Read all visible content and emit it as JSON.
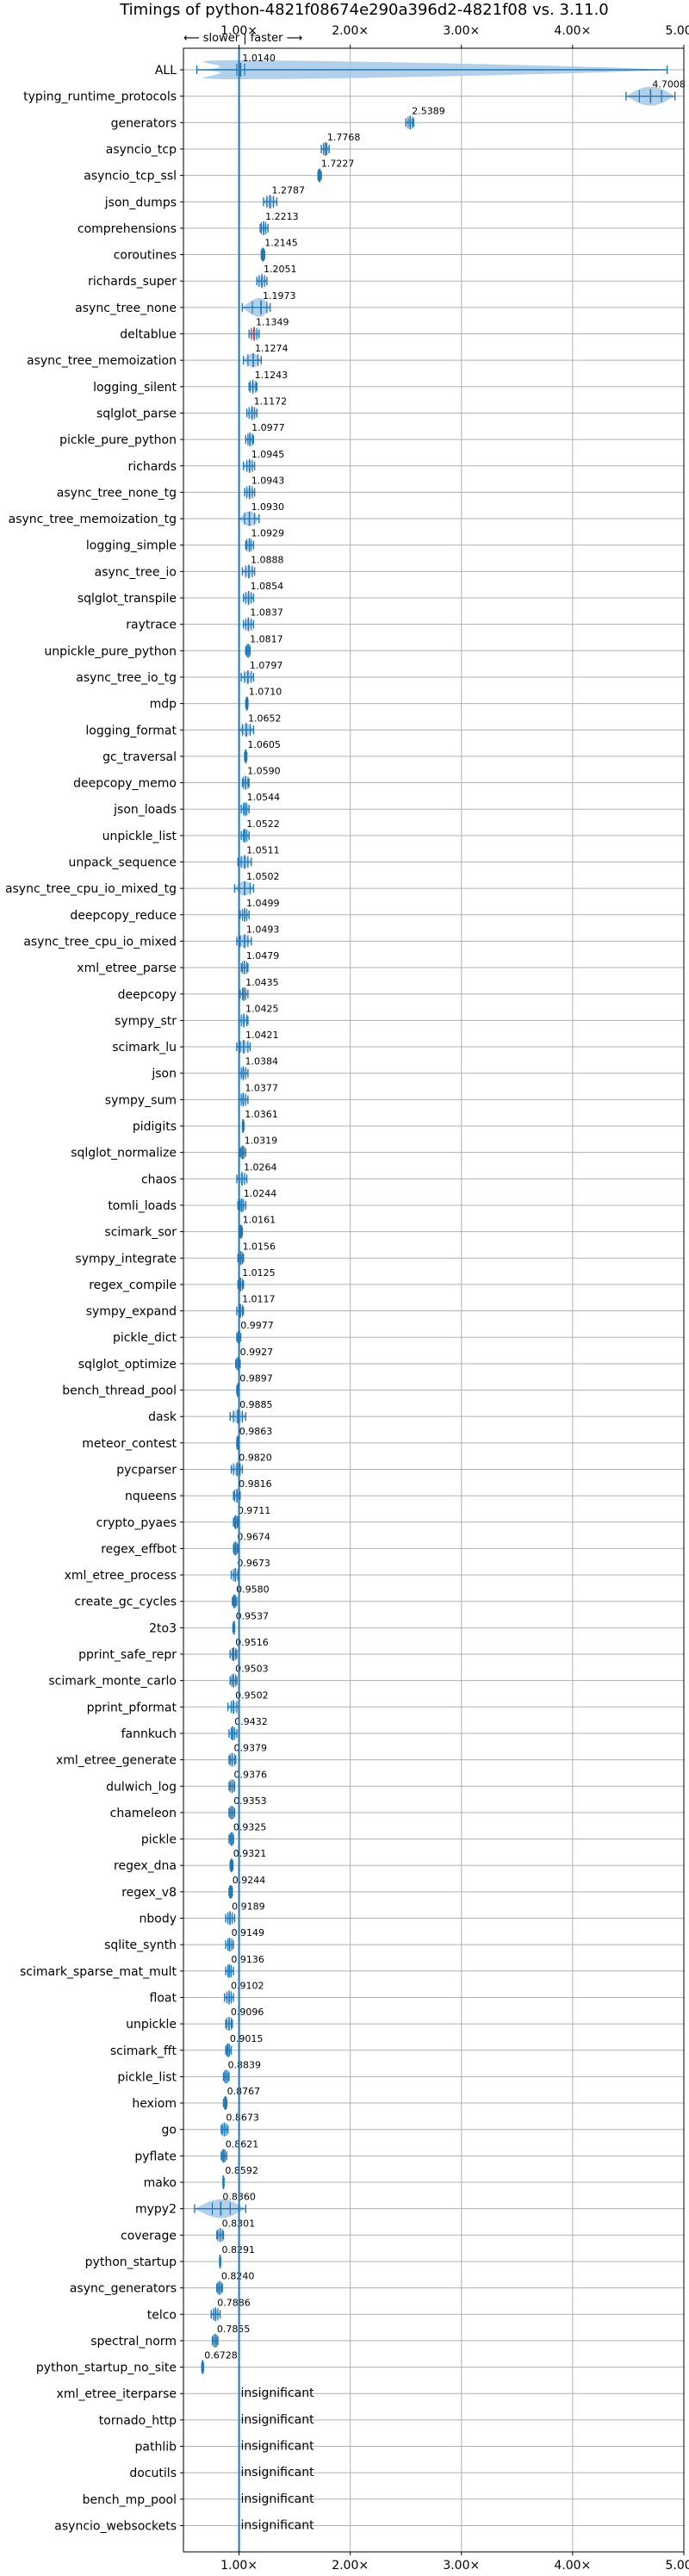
{
  "chart_data": {
    "type": "violin",
    "title": "Timings of python-4821f08674e290a396d2-4821f08 vs. 3.11.0",
    "direction_label": "⟵ slower | faster ⟶",
    "xlim": [
      0.5,
      5.0
    ],
    "x_ticks": [
      {
        "value": 1,
        "label": "1.00×"
      },
      {
        "value": 2,
        "label": "2.00×"
      },
      {
        "value": 3,
        "label": "3.00×"
      },
      {
        "value": 4,
        "label": "4.00×"
      },
      {
        "value": 5,
        "label": "5.00×"
      }
    ],
    "reference_line": 1.0,
    "grid": true,
    "colors": {
      "violin": "#a6c8e8",
      "line": "#1f77b4",
      "outlier": "#d62728"
    },
    "benchmarks": [
      {
        "name": "ALL",
        "value": 1.014,
        "label": "1.0140",
        "min": 0.62,
        "max": 4.85,
        "q1": 0.98,
        "q3": 1.05
      },
      {
        "name": "typing_runtime_protocols",
        "value": 4.7008,
        "label": "4.7008",
        "min": 4.48,
        "max": 4.92,
        "q1": 4.6,
        "q3": 4.8
      },
      {
        "name": "generators",
        "value": 2.5389,
        "label": "2.5389",
        "min": 2.5,
        "max": 2.57,
        "q1": 2.52,
        "q3": 2.56
      },
      {
        "name": "asyncio_tcp",
        "value": 1.7768,
        "label": "1.7768",
        "min": 1.74,
        "max": 1.81,
        "q1": 1.76,
        "q3": 1.79
      },
      {
        "name": "asyncio_tcp_ssl",
        "value": 1.7227,
        "label": "1.7227",
        "min": 1.71,
        "max": 1.74,
        "q1": 1.715,
        "q3": 1.73
      },
      {
        "name": "json_dumps",
        "value": 1.2787,
        "label": "1.2787",
        "min": 1.22,
        "max": 1.34,
        "q1": 1.25,
        "q3": 1.31
      },
      {
        "name": "comprehensions",
        "value": 1.2213,
        "label": "1.2213",
        "min": 1.19,
        "max": 1.26,
        "q1": 1.2,
        "q3": 1.24
      },
      {
        "name": "coroutines",
        "value": 1.2145,
        "label": "1.2145",
        "min": 1.2,
        "max": 1.23,
        "q1": 1.205,
        "q3": 1.225
      },
      {
        "name": "richards_super",
        "value": 1.2051,
        "label": "1.2051",
        "min": 1.16,
        "max": 1.25,
        "q1": 1.18,
        "q3": 1.23
      },
      {
        "name": "async_tree_none",
        "value": 1.1973,
        "label": "1.1973",
        "min": 1.03,
        "max": 1.28,
        "q1": 1.12,
        "q3": 1.25
      },
      {
        "name": "deltablue",
        "value": 1.1349,
        "label": "1.1349",
        "min": 1.09,
        "max": 1.18,
        "q1": 1.11,
        "q3": 1.16,
        "outlier": true
      },
      {
        "name": "async_tree_memoization",
        "value": 1.1274,
        "label": "1.1274",
        "min": 1.04,
        "max": 1.2,
        "q1": 1.08,
        "q3": 1.17
      },
      {
        "name": "logging_silent",
        "value": 1.1243,
        "label": "1.1243",
        "min": 1.09,
        "max": 1.16,
        "q1": 1.1,
        "q3": 1.15
      },
      {
        "name": "sqlglot_parse",
        "value": 1.1172,
        "label": "1.1172",
        "min": 1.07,
        "max": 1.16,
        "q1": 1.09,
        "q3": 1.14
      },
      {
        "name": "pickle_pure_python",
        "value": 1.0977,
        "label": "1.0977",
        "min": 1.06,
        "max": 1.13,
        "q1": 1.08,
        "q3": 1.12
      },
      {
        "name": "richards",
        "value": 1.0945,
        "label": "1.0945",
        "min": 1.04,
        "max": 1.14,
        "q1": 1.07,
        "q3": 1.12
      },
      {
        "name": "async_tree_none_tg",
        "value": 1.0943,
        "label": "1.0943",
        "min": 1.05,
        "max": 1.14,
        "q1": 1.07,
        "q3": 1.12
      },
      {
        "name": "async_tree_memoization_tg",
        "value": 1.093,
        "label": "1.0930",
        "min": 1.0,
        "max": 1.18,
        "q1": 1.05,
        "q3": 1.14
      },
      {
        "name": "logging_simple",
        "value": 1.0929,
        "label": "1.0929",
        "min": 1.06,
        "max": 1.13,
        "q1": 1.07,
        "q3": 1.11
      },
      {
        "name": "async_tree_io",
        "value": 1.0888,
        "label": "1.0888",
        "min": 1.03,
        "max": 1.14,
        "q1": 1.06,
        "q3": 1.12
      },
      {
        "name": "sqlglot_transpile",
        "value": 1.0854,
        "label": "1.0854",
        "min": 1.04,
        "max": 1.13,
        "q1": 1.06,
        "q3": 1.11
      },
      {
        "name": "raytrace",
        "value": 1.0837,
        "label": "1.0837",
        "min": 1.04,
        "max": 1.13,
        "q1": 1.06,
        "q3": 1.11
      },
      {
        "name": "unpickle_pure_python",
        "value": 1.0817,
        "label": "1.0817",
        "min": 1.06,
        "max": 1.1,
        "q1": 1.07,
        "q3": 1.095
      },
      {
        "name": "async_tree_io_tg",
        "value": 1.0797,
        "label": "1.0797",
        "min": 1.02,
        "max": 1.13,
        "q1": 1.05,
        "q3": 1.11
      },
      {
        "name": "mdp",
        "value": 1.071,
        "label": "1.0710",
        "min": 1.06,
        "max": 1.08,
        "q1": 1.065,
        "q3": 1.077
      },
      {
        "name": "logging_format",
        "value": 1.0652,
        "label": "1.0652",
        "min": 1.0,
        "max": 1.13,
        "q1": 1.03,
        "q3": 1.1
      },
      {
        "name": "gc_traversal",
        "value": 1.0605,
        "label": "1.0605",
        "min": 1.05,
        "max": 1.07,
        "q1": 1.055,
        "q3": 1.065
      },
      {
        "name": "deepcopy_memo",
        "value": 1.059,
        "label": "1.0590",
        "min": 1.03,
        "max": 1.09,
        "q1": 1.04,
        "q3": 1.08
      },
      {
        "name": "json_loads",
        "value": 1.0544,
        "label": "1.0544",
        "min": 1.02,
        "max": 1.09,
        "q1": 1.04,
        "q3": 1.07
      },
      {
        "name": "unpickle_list",
        "value": 1.0522,
        "label": "1.0522",
        "min": 1.02,
        "max": 1.09,
        "q1": 1.04,
        "q3": 1.07
      },
      {
        "name": "unpack_sequence",
        "value": 1.0511,
        "label": "1.0511",
        "min": 0.99,
        "max": 1.11,
        "q1": 1.02,
        "q3": 1.08
      },
      {
        "name": "async_tree_cpu_io_mixed_tg",
        "value": 1.0502,
        "label": "1.0502",
        "min": 0.96,
        "max": 1.13,
        "q1": 1.0,
        "q3": 1.1
      },
      {
        "name": "deepcopy_reduce",
        "value": 1.0499,
        "label": "1.0499",
        "min": 1.01,
        "max": 1.09,
        "q1": 1.03,
        "q3": 1.07
      },
      {
        "name": "async_tree_cpu_io_mixed",
        "value": 1.0493,
        "label": "1.0493",
        "min": 0.98,
        "max": 1.11,
        "q1": 1.01,
        "q3": 1.08
      },
      {
        "name": "xml_etree_parse",
        "value": 1.0479,
        "label": "1.0479",
        "min": 1.02,
        "max": 1.08,
        "q1": 1.03,
        "q3": 1.07
      },
      {
        "name": "deepcopy",
        "value": 1.0435,
        "label": "1.0435",
        "min": 1.01,
        "max": 1.08,
        "q1": 1.03,
        "q3": 1.06
      },
      {
        "name": "sympy_str",
        "value": 1.0425,
        "label": "1.0425",
        "min": 1.0,
        "max": 1.08,
        "q1": 1.02,
        "q3": 1.07
      },
      {
        "name": "scimark_lu",
        "value": 1.0421,
        "label": "1.0421",
        "min": 0.98,
        "max": 1.1,
        "q1": 1.01,
        "q3": 1.08
      },
      {
        "name": "json",
        "value": 1.0384,
        "label": "1.0384",
        "min": 1.0,
        "max": 1.08,
        "q1": 1.02,
        "q3": 1.06
      },
      {
        "name": "sympy_sum",
        "value": 1.0377,
        "label": "1.0377",
        "min": 1.0,
        "max": 1.08,
        "q1": 1.02,
        "q3": 1.06
      },
      {
        "name": "pidigits",
        "value": 1.0361,
        "label": "1.0361",
        "min": 1.03,
        "max": 1.045,
        "q1": 1.032,
        "q3": 1.04
      },
      {
        "name": "sqlglot_normalize",
        "value": 1.0319,
        "label": "1.0319",
        "min": 1.01,
        "max": 1.06,
        "q1": 1.02,
        "q3": 1.045
      },
      {
        "name": "chaos",
        "value": 1.0264,
        "label": "1.0264",
        "min": 0.98,
        "max": 1.07,
        "q1": 1.0,
        "q3": 1.05
      },
      {
        "name": "tomli_loads",
        "value": 1.0244,
        "label": "1.0244",
        "min": 0.99,
        "max": 1.06,
        "q1": 1.01,
        "q3": 1.04
      },
      {
        "name": "scimark_sor",
        "value": 1.0161,
        "label": "1.0161",
        "min": 1.0,
        "max": 1.03,
        "q1": 1.01,
        "q3": 1.025
      },
      {
        "name": "sympy_integrate",
        "value": 1.0156,
        "label": "1.0156",
        "min": 0.99,
        "max": 1.04,
        "q1": 1.0,
        "q3": 1.03
      },
      {
        "name": "regex_compile",
        "value": 1.0125,
        "label": "1.0125",
        "min": 0.99,
        "max": 1.04,
        "q1": 1.0,
        "q3": 1.03
      },
      {
        "name": "sympy_expand",
        "value": 1.0117,
        "label": "1.0117",
        "min": 0.98,
        "max": 1.04,
        "q1": 1.0,
        "q3": 1.03
      },
      {
        "name": "pickle_dict",
        "value": 0.9977,
        "label": "0.9977",
        "min": 0.98,
        "max": 1.015,
        "q1": 0.99,
        "q3": 1.005
      },
      {
        "name": "sqlglot_optimize",
        "value": 0.9927,
        "label": "0.9927",
        "min": 0.97,
        "max": 1.01,
        "q1": 0.98,
        "q3": 1.0
      },
      {
        "name": "bench_thread_pool",
        "value": 0.9897,
        "label": "0.9897",
        "min": 0.98,
        "max": 1.0,
        "q1": 0.985,
        "q3": 0.995
      },
      {
        "name": "dask",
        "value": 0.9885,
        "label": "0.9885",
        "min": 0.92,
        "max": 1.06,
        "q1": 0.95,
        "q3": 1.03
      },
      {
        "name": "meteor_contest",
        "value": 0.9863,
        "label": "0.9863",
        "min": 0.98,
        "max": 0.995,
        "q1": 0.982,
        "q3": 0.99
      },
      {
        "name": "pycparser",
        "value": 0.982,
        "label": "0.9820",
        "min": 0.93,
        "max": 1.03,
        "q1": 0.95,
        "q3": 1.01
      },
      {
        "name": "nqueens",
        "value": 0.9816,
        "label": "0.9816",
        "min": 0.95,
        "max": 1.01,
        "q1": 0.96,
        "q3": 1.0
      },
      {
        "name": "crypto_pyaes",
        "value": 0.9711,
        "label": "0.9711",
        "min": 0.95,
        "max": 0.99,
        "q1": 0.96,
        "q3": 0.985
      },
      {
        "name": "regex_effbot",
        "value": 0.9674,
        "label": "0.9674",
        "min": 0.95,
        "max": 0.99,
        "q1": 0.955,
        "q3": 0.98
      },
      {
        "name": "xml_etree_process",
        "value": 0.9673,
        "label": "0.9673",
        "min": 0.93,
        "max": 1.0,
        "q1": 0.95,
        "q3": 0.99
      },
      {
        "name": "create_gc_cycles",
        "value": 0.958,
        "label": "0.9580",
        "min": 0.94,
        "max": 0.98,
        "q1": 0.95,
        "q3": 0.97
      },
      {
        "name": "2to3",
        "value": 0.9537,
        "label": "0.9537",
        "min": 0.945,
        "max": 0.96,
        "q1": 0.95,
        "q3": 0.958
      },
      {
        "name": "pprint_safe_repr",
        "value": 0.9516,
        "label": "0.9516",
        "min": 0.92,
        "max": 0.98,
        "q1": 0.94,
        "q3": 0.97
      },
      {
        "name": "scimark_monte_carlo",
        "value": 0.9503,
        "label": "0.9503",
        "min": 0.92,
        "max": 0.98,
        "q1": 0.935,
        "q3": 0.97
      },
      {
        "name": "pprint_pformat",
        "value": 0.9502,
        "label": "0.9502",
        "min": 0.9,
        "max": 1.0,
        "q1": 0.93,
        "q3": 0.98
      },
      {
        "name": "fannkuch",
        "value": 0.9432,
        "label": "0.9432",
        "min": 0.91,
        "max": 0.98,
        "q1": 0.93,
        "q3": 0.96
      },
      {
        "name": "xml_etree_generate",
        "value": 0.9379,
        "label": "0.9379",
        "min": 0.91,
        "max": 0.97,
        "q1": 0.92,
        "q3": 0.96
      },
      {
        "name": "dulwich_log",
        "value": 0.9376,
        "label": "0.9376",
        "min": 0.91,
        "max": 0.96,
        "q1": 0.92,
        "q3": 0.955
      },
      {
        "name": "chameleon",
        "value": 0.9353,
        "label": "0.9353",
        "min": 0.91,
        "max": 0.96,
        "q1": 0.92,
        "q3": 0.95
      },
      {
        "name": "pickle",
        "value": 0.9325,
        "label": "0.9325",
        "min": 0.91,
        "max": 0.95,
        "q1": 0.92,
        "q3": 0.945
      },
      {
        "name": "regex_dna",
        "value": 0.9321,
        "label": "0.9321",
        "min": 0.92,
        "max": 0.945,
        "q1": 0.925,
        "q3": 0.94
      },
      {
        "name": "regex_v8",
        "value": 0.9244,
        "label": "0.9244",
        "min": 0.91,
        "max": 0.94,
        "q1": 0.915,
        "q3": 0.935
      },
      {
        "name": "nbody",
        "value": 0.9189,
        "label": "0.9189",
        "min": 0.88,
        "max": 0.96,
        "q1": 0.9,
        "q3": 0.94
      },
      {
        "name": "sqlite_synth",
        "value": 0.9149,
        "label": "0.9149",
        "min": 0.88,
        "max": 0.95,
        "q1": 0.9,
        "q3": 0.935
      },
      {
        "name": "scimark_sparse_mat_mult",
        "value": 0.9136,
        "label": "0.9136",
        "min": 0.88,
        "max": 0.95,
        "q1": 0.9,
        "q3": 0.93
      },
      {
        "name": "float",
        "value": 0.9102,
        "label": "0.9102",
        "min": 0.87,
        "max": 0.95,
        "q1": 0.89,
        "q3": 0.93
      },
      {
        "name": "unpickle",
        "value": 0.9096,
        "label": "0.9096",
        "min": 0.88,
        "max": 0.94,
        "q1": 0.89,
        "q3": 0.93
      },
      {
        "name": "scimark_fft",
        "value": 0.9015,
        "label": "0.9015",
        "min": 0.88,
        "max": 0.93,
        "q1": 0.89,
        "q3": 0.915
      },
      {
        "name": "pickle_list",
        "value": 0.8839,
        "label": "0.8839",
        "min": 0.86,
        "max": 0.91,
        "q1": 0.87,
        "q3": 0.9
      },
      {
        "name": "hexiom",
        "value": 0.8767,
        "label": "0.8767",
        "min": 0.86,
        "max": 0.89,
        "q1": 0.87,
        "q3": 0.885
      },
      {
        "name": "go",
        "value": 0.8673,
        "label": "0.8673",
        "min": 0.84,
        "max": 0.9,
        "q1": 0.85,
        "q3": 0.885
      },
      {
        "name": "pyflate",
        "value": 0.8621,
        "label": "0.8621",
        "min": 0.84,
        "max": 0.89,
        "q1": 0.85,
        "q3": 0.875
      },
      {
        "name": "mako",
        "value": 0.8592,
        "label": "0.8592",
        "min": 0.855,
        "max": 0.865,
        "q1": 0.857,
        "q3": 0.862
      },
      {
        "name": "mypy2",
        "value": 0.836,
        "label": "0.8360",
        "min": 0.6,
        "max": 1.06,
        "q1": 0.76,
        "q3": 0.92
      },
      {
        "name": "coverage",
        "value": 0.8301,
        "label": "0.8301",
        "min": 0.8,
        "max": 0.86,
        "q1": 0.81,
        "q3": 0.85
      },
      {
        "name": "python_startup",
        "value": 0.8291,
        "label": "0.8291",
        "min": 0.825,
        "max": 0.835,
        "q1": 0.827,
        "q3": 0.832
      },
      {
        "name": "async_generators",
        "value": 0.824,
        "label": "0.8240",
        "min": 0.8,
        "max": 0.85,
        "q1": 0.81,
        "q3": 0.84
      },
      {
        "name": "telco",
        "value": 0.7886,
        "label": "0.7886",
        "min": 0.75,
        "max": 0.83,
        "q1": 0.77,
        "q3": 0.81
      },
      {
        "name": "spectral_norm",
        "value": 0.7855,
        "label": "0.7855",
        "min": 0.76,
        "max": 0.81,
        "q1": 0.77,
        "q3": 0.8
      },
      {
        "name": "python_startup_no_site",
        "value": 0.6728,
        "label": "0.6728",
        "min": 0.665,
        "max": 0.68,
        "q1": 0.668,
        "q3": 0.677
      },
      {
        "name": "xml_etree_iterparse",
        "label": "insignificant",
        "insignificant": true
      },
      {
        "name": "tornado_http",
        "label": "insignificant",
        "insignificant": true
      },
      {
        "name": "pathlib",
        "label": "insignificant",
        "insignificant": true
      },
      {
        "name": "docutils",
        "label": "insignificant",
        "insignificant": true
      },
      {
        "name": "bench_mp_pool",
        "label": "insignificant",
        "insignificant": true
      },
      {
        "name": "asyncio_websockets",
        "label": "insignificant",
        "insignificant": true
      }
    ]
  }
}
